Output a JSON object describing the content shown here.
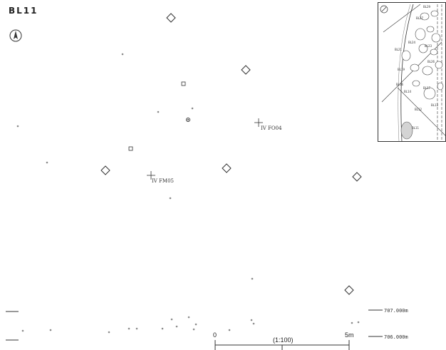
{
  "title": "BL11",
  "north_arrow_icon": "north-arrow-icon",
  "grid_points": [
    {
      "label": "IV FO04"
    },
    {
      "label": "IV FM05"
    }
  ],
  "elevation_labels": [
    "707.000m",
    "706.000m"
  ],
  "scale": {
    "start": "0",
    "end": "5m",
    "ratio": "(1:100)"
  },
  "key_map": {
    "labels": [
      "BL29",
      "BL27",
      "BL24",
      "BL23",
      "BL26",
      "BL21",
      "BL19",
      "BL16",
      "BL17",
      "BL14",
      "BL13",
      "BL12",
      "BL11"
    ]
  },
  "colors": {
    "line": "#333333",
    "dot": "#8a8a8a",
    "feature_fill": "#d4d4d4"
  }
}
